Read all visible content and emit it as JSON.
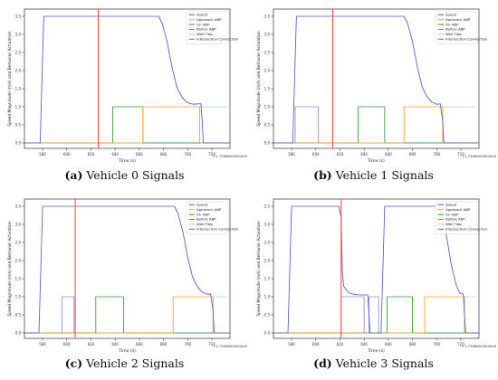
{
  "chart_data": [
    {
      "type": "line",
      "caption_letter": "(a)",
      "caption_text": "Vehicle 0 Signals",
      "xlabel": "Time (s)",
      "ylabel": "Speed Magnitude (m/s) and Behavior Activation",
      "offset_label": "+1.73968500000e9",
      "xlim": [
        565,
        735
      ],
      "ylim": [
        -0.15,
        3.7
      ],
      "xticks": [
        580,
        600,
        620,
        640,
        660,
        680,
        700,
        720
      ],
      "yticks": [
        0.0,
        0.5,
        1.0,
        1.5,
        2.0,
        2.5,
        3.0,
        3.5
      ],
      "grid": false,
      "legend_position": "top-right",
      "series": [
        {
          "name": "Speed",
          "color": "#4f5bd5",
          "x": [
            565,
            578,
            581,
            676,
            679,
            683,
            687,
            691,
            695,
            699,
            703,
            706,
            708,
            711,
            712,
            713,
            735
          ],
          "y": [
            0,
            0,
            3.5,
            3.5,
            3.3,
            2.8,
            2.1,
            1.55,
            1.28,
            1.13,
            1.08,
            1.07,
            1.08,
            1.08,
            0.6,
            0,
            0
          ]
        },
        {
          "name": "Approach ABP",
          "color": "#ff9f1c",
          "x": [
            565,
            663,
            663,
            710,
            710,
            735
          ],
          "y": [
            0,
            0,
            1,
            1,
            0,
            0
          ]
        },
        {
          "name": "On ABP",
          "color": "#2ca02c",
          "x": [
            565,
            638,
            638,
            663,
            663,
            735
          ],
          "y": [
            0,
            0,
            1,
            1,
            0,
            0
          ]
        },
        {
          "name": "Before ABP",
          "color": "#00bcd4",
          "x": [
            565,
            733
          ],
          "y": [
            0,
            0
          ]
        },
        {
          "name": "Wall Flag",
          "color": "#9cd6df",
          "x": [
            565,
            710,
            710,
            733
          ],
          "y": [
            0,
            0,
            1,
            1
          ]
        },
        {
          "name": "Intersection Connection",
          "color": "#ff3b3b",
          "x": [
            626,
            626
          ],
          "y": [
            -0.15,
            3.7
          ]
        }
      ]
    },
    {
      "type": "line",
      "caption_letter": "(b)",
      "caption_text": "Vehicle 1 Signals",
      "xlabel": "Time (s)",
      "ylabel": "Speed Magnitude (m/s) and Behavior Activation",
      "offset_label": "+1.73968500000e9",
      "xlim": [
        565,
        735
      ],
      "ylim": [
        -0.15,
        3.7
      ],
      "xticks": [
        580,
        600,
        620,
        640,
        660,
        680,
        700,
        720
      ],
      "yticks": [
        0.0,
        0.5,
        1.0,
        1.5,
        2.0,
        2.5,
        3.0,
        3.5
      ],
      "grid": false,
      "legend_position": "top-right",
      "series": [
        {
          "name": "Speed",
          "color": "#4f5bd5",
          "x": [
            565,
            581,
            584,
            673,
            676,
            680,
            684,
            688,
            692,
            696,
            699,
            701,
            703,
            705,
            706,
            735
          ],
          "y": [
            0,
            0,
            3.5,
            3.5,
            3.3,
            2.8,
            2.1,
            1.55,
            1.28,
            1.13,
            1.08,
            1.07,
            1.08,
            0.6,
            0,
            0
          ]
        },
        {
          "name": "Approach ABP",
          "color": "#ff9f1c",
          "x": [
            565,
            673,
            673,
            705,
            705,
            735
          ],
          "y": [
            0,
            0,
            1,
            1,
            0,
            0
          ]
        },
        {
          "name": "On ABP",
          "color": "#2ca02c",
          "x": [
            565,
            635,
            635,
            657,
            657,
            735
          ],
          "y": [
            0,
            0,
            1,
            1,
            0,
            0
          ]
        },
        {
          "name": "Before ABP",
          "color": "#00bcd4",
          "x": [
            565,
            732
          ],
          "y": [
            0,
            0
          ]
        },
        {
          "name": "Wall Flag",
          "color": "#9cd6df",
          "x": [
            565,
            705,
            705,
            732
          ],
          "y": [
            0,
            0,
            1,
            1
          ]
        },
        {
          "name": "Intersection Connection",
          "color": "#ff3b3b",
          "x": [
            614,
            614
          ],
          "y": [
            -0.15,
            3.7
          ]
        },
        {
          "name": "",
          "color": "#8c8cd8",
          "x": [
            583,
            583,
            602,
            602
          ],
          "y": [
            0,
            1,
            1,
            0
          ]
        }
      ]
    },
    {
      "type": "line",
      "caption_letter": "(c)",
      "caption_text": "Vehicle 2 Signals",
      "xlabel": "Time (s)",
      "ylabel": "Speed Magnitude (m/s) and Behavior Activation",
      "offset_label": "+1.73968500000e9",
      "xlim": [
        565,
        735
      ],
      "ylim": [
        -0.15,
        3.7
      ],
      "xticks": [
        580,
        600,
        620,
        640,
        660,
        680,
        700,
        720
      ],
      "yticks": [
        0.0,
        0.5,
        1.0,
        1.5,
        2.0,
        2.5,
        3.0,
        3.5
      ],
      "grid": false,
      "legend_position": "top-right",
      "series": [
        {
          "name": "Speed",
          "color": "#4f5bd5",
          "x": [
            565,
            577,
            580,
            689,
            692,
            696,
            700,
            704,
            708,
            712,
            715,
            717,
            719,
            721,
            722,
            735
          ],
          "y": [
            0,
            0,
            3.5,
            3.5,
            3.3,
            2.8,
            2.1,
            1.55,
            1.28,
            1.13,
            1.08,
            1.07,
            1.08,
            0.6,
            0,
            0
          ]
        },
        {
          "name": "Approach ABP",
          "color": "#ff9f1c",
          "x": [
            565,
            688,
            688,
            721,
            721,
            735
          ],
          "y": [
            0,
            0,
            1,
            1,
            0,
            0
          ]
        },
        {
          "name": "On ABP",
          "color": "#2ca02c",
          "x": [
            565,
            624,
            624,
            647,
            647,
            735
          ],
          "y": [
            0,
            0,
            1,
            1,
            0,
            0
          ]
        },
        {
          "name": "Before ABP",
          "color": "#00bcd4",
          "x": [
            565,
            733
          ],
          "y": [
            0,
            0
          ]
        },
        {
          "name": "Wall Flag",
          "color": "#9cd6df",
          "x": [
            565,
            721,
            721,
            733
          ],
          "y": [
            0,
            0,
            1,
            1
          ]
        },
        {
          "name": "Intersection Connection",
          "color": "#ff3b3b",
          "x": [
            607,
            607
          ],
          "y": [
            -0.15,
            3.7
          ]
        },
        {
          "name": "",
          "color": "#8c8cd8",
          "x": [
            596,
            596,
            606,
            606
          ],
          "y": [
            0,
            1,
            1,
            0
          ]
        }
      ]
    },
    {
      "type": "line",
      "caption_letter": "(d)",
      "caption_text": "Vehicle 3 Signals",
      "xlabel": "Time (s)",
      "ylabel": "Speed Magnitude (m/s) and Behavior Activation",
      "offset_label": "+1.73968500000e9",
      "xlim": [
        565,
        735
      ],
      "ylim": [
        -0.15,
        3.7
      ],
      "xticks": [
        580,
        600,
        620,
        640,
        660,
        680,
        700,
        720
      ],
      "yticks": [
        0.0,
        0.5,
        1.0,
        1.5,
        2.0,
        2.5,
        3.0,
        3.5
      ],
      "grid": false,
      "legend_position": "top-right",
      "series": [
        {
          "name": "Speed",
          "color": "#4f5bd5",
          "x": [
            565,
            577,
            580,
            619,
            621,
            622,
            623,
            625,
            628,
            632,
            636,
            640,
            643,
            645,
            648,
            654,
            657,
            701,
            704,
            708,
            712,
            716,
            719,
            722,
            723,
            724,
            735
          ],
          "y": [
            0,
            0,
            3.5,
            3.5,
            3.2,
            1.7,
            1.3,
            1.2,
            1.1,
            1.06,
            1.05,
            1.05,
            1.05,
            0,
            0,
            0,
            3.5,
            3.5,
            3.3,
            2.7,
            1.9,
            1.35,
            1.1,
            1.07,
            0.5,
            0,
            0
          ]
        },
        {
          "name": "Approach ABP",
          "color": "#ff9f1c",
          "x": [
            565,
            690,
            690,
            723,
            723,
            735
          ],
          "y": [
            0,
            0,
            1,
            1,
            0,
            0
          ]
        },
        {
          "name": "On ABP",
          "color": "#2ca02c",
          "x": [
            565,
            659,
            659,
            680,
            680,
            735
          ],
          "y": [
            0,
            0,
            1,
            1,
            0,
            0
          ]
        },
        {
          "name": "Before ABP",
          "color": "#00bcd4",
          "x": [
            565,
            733
          ],
          "y": [
            0,
            0
          ]
        },
        {
          "name": "Wall Flag",
          "color": "#9cd6df",
          "x": [
            565,
            723,
            723,
            733
          ],
          "y": [
            0,
            0,
            1,
            1
          ]
        },
        {
          "name": "Intersection Connection",
          "color": "#ff3b3b",
          "x": [
            621,
            621
          ],
          "y": [
            -0.15,
            3.7
          ]
        },
        {
          "name": "",
          "color": "#8c8cd8",
          "x": [
            621,
            621,
            640,
            640,
            644,
            644,
            652,
            652
          ],
          "y": [
            0,
            1,
            1,
            0,
            0,
            1,
            1,
            0
          ]
        }
      ]
    }
  ]
}
